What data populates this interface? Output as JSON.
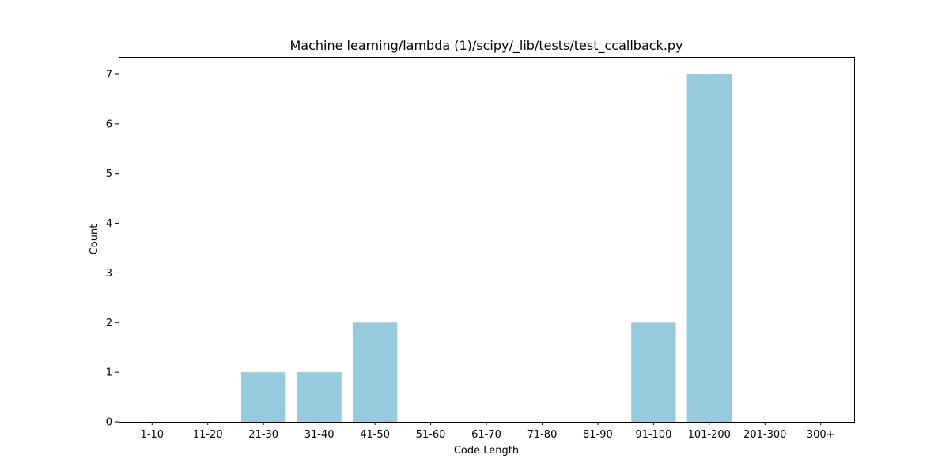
{
  "chart_data": {
    "type": "bar",
    "title": "Machine learning/lambda (1)/scipy/_lib/tests/test_ccallback.py",
    "xlabel": "Code Length",
    "ylabel": "Count",
    "categories": [
      "1-10",
      "11-20",
      "21-30",
      "31-40",
      "41-50",
      "51-60",
      "61-70",
      "71-80",
      "81-90",
      "91-100",
      "101-200",
      "201-300",
      "300+"
    ],
    "values": [
      0,
      0,
      1,
      1,
      2,
      0,
      0,
      0,
      0,
      2,
      7,
      0,
      0
    ],
    "yticks": [
      0,
      1,
      2,
      3,
      4,
      5,
      6,
      7
    ],
    "ylim": [
      0,
      7.35
    ],
    "bar_color": "#96cadd",
    "grid": false,
    "legend": "none"
  }
}
